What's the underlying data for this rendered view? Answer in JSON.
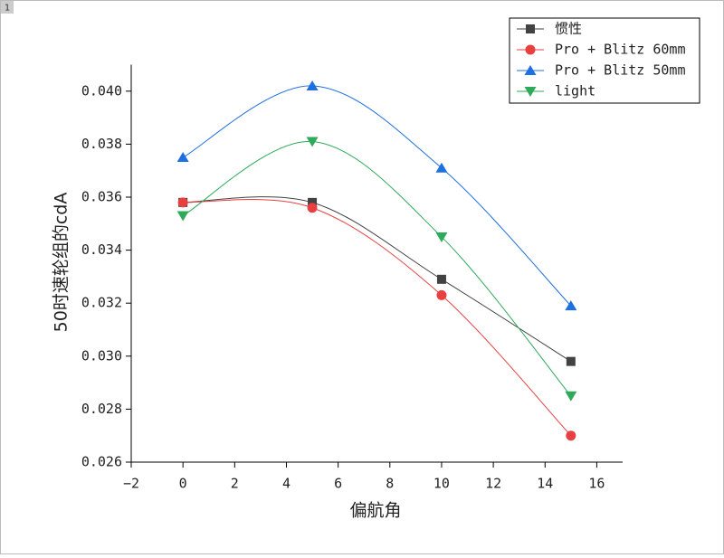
{
  "window_label": "1",
  "chart_data": {
    "type": "line",
    "x_label": "偏航角",
    "y_label": "50时速轮组的cdA",
    "xlim": [
      -2,
      17
    ],
    "ylim": [
      0.026,
      0.041
    ],
    "xticks": [
      {
        "value": -2,
        "label": "−2"
      },
      0,
      2,
      4,
      6,
      8,
      10,
      12,
      14,
      16
    ],
    "yticks": [
      {
        "value": 0.026,
        "label": "0.026"
      },
      {
        "value": 0.028,
        "label": "0.028"
      },
      {
        "value": 0.03,
        "label": "0.030"
      },
      {
        "value": 0.032,
        "label": "0.032"
      },
      {
        "value": 0.034,
        "label": "0.034"
      },
      {
        "value": 0.036,
        "label": "0.036"
      },
      {
        "value": 0.038,
        "label": "0.038"
      },
      {
        "value": 0.04,
        "label": "0.040"
      }
    ],
    "x": [
      0,
      5,
      10,
      15
    ],
    "legend": "upper right",
    "series": [
      {
        "name": "惯性",
        "color": "#424242",
        "marker": "square",
        "values": [
          0.0358,
          0.0358,
          0.0329,
          0.0298
        ]
      },
      {
        "name": "Pro + Blitz 60mm",
        "color": "#e84040",
        "marker": "circle",
        "values": [
          0.0358,
          0.0356,
          0.0323,
          0.027
        ]
      },
      {
        "name": "Pro + Blitz 50mm",
        "color": "#1e6fe0",
        "marker": "triangle",
        "values": [
          0.0375,
          0.0402,
          0.0371,
          0.0319
        ]
      },
      {
        "name": "light",
        "color": "#2eaa5a",
        "marker": "triangle-down",
        "values": [
          0.0353,
          0.0381,
          0.0345,
          0.0285
        ]
      }
    ]
  }
}
